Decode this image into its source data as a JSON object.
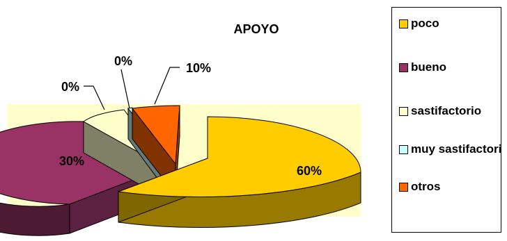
{
  "chart_data": {
    "type": "pie",
    "title": "APOYO",
    "categories": [
      "poco",
      "bueno",
      "sastifactorio",
      "muy sastifactorio",
      "otros"
    ],
    "values": [
      60,
      30,
      0,
      0,
      10
    ],
    "labels": [
      "60%",
      "30%",
      "0%",
      "0%",
      "10%"
    ],
    "colors": [
      "#FFCC00",
      "#993366",
      "#FFFFCC",
      "#CCFFFF",
      "#FF6600"
    ],
    "legend": "right",
    "plot_area_color": "#FFFFCC",
    "exploded": true,
    "three_d": true
  }
}
